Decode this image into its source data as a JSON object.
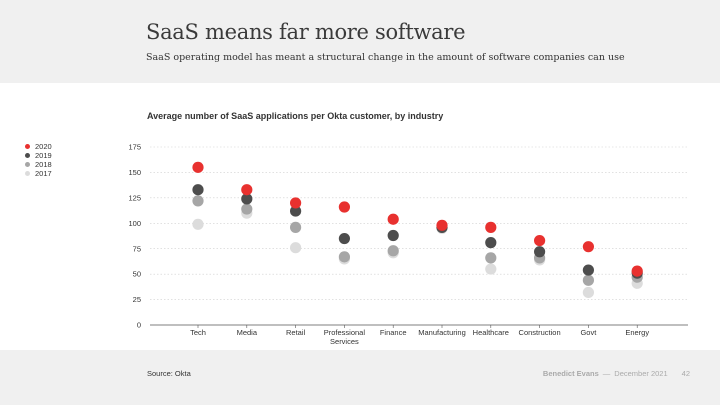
{
  "slide": {
    "title": "SaaS means far more software",
    "subtitle": "SaaS operating model has meant a structural change in the amount of software companies can use"
  },
  "footer": {
    "source": "Source: Okta",
    "author": "Benedict Evans",
    "separator": "—",
    "date": "December 2021",
    "page": "42"
  },
  "chart_data": {
    "type": "scatter",
    "title": "Average number of SaaS applications per Okta customer, by industry",
    "xlabel": "",
    "ylabel": "",
    "ylim": [
      0,
      175
    ],
    "yticks": [
      0,
      25,
      50,
      75,
      100,
      125,
      150,
      175
    ],
    "grid": true,
    "legend_position": "left",
    "categories": [
      "Tech",
      "Media",
      "Retail",
      "Professional Services",
      "Finance",
      "Manufacturing",
      "Healthcare",
      "Construction",
      "Govt",
      "Energy"
    ],
    "category_lines": [
      [
        "Tech"
      ],
      [
        "Media"
      ],
      [
        "Retail"
      ],
      [
        "Professional",
        "Services"
      ],
      [
        "Finance"
      ],
      [
        "Manufacturing"
      ],
      [
        "Healthcare"
      ],
      [
        "Construction"
      ],
      [
        "Govt"
      ],
      [
        "Energy"
      ]
    ],
    "series": [
      {
        "name": "2017",
        "color": "#dcdcdc",
        "values": [
          99,
          110,
          76,
          65,
          71,
          95,
          55,
          64,
          32,
          41
        ]
      },
      {
        "name": "2018",
        "color": "#a6a6a6",
        "values": [
          122,
          114,
          96,
          67,
          73,
          96,
          66,
          66,
          44,
          47
        ]
      },
      {
        "name": "2019",
        "color": "#4d4d4d",
        "values": [
          133,
          124,
          112,
          85,
          88,
          96,
          81,
          72,
          54,
          51
        ]
      },
      {
        "name": "2020",
        "color": "#e8312f",
        "values": [
          155,
          133,
          120,
          116,
          104,
          98,
          96,
          83,
          77,
          53
        ]
      }
    ],
    "legend_order": [
      "2020",
      "2019",
      "2018",
      "2017"
    ]
  }
}
